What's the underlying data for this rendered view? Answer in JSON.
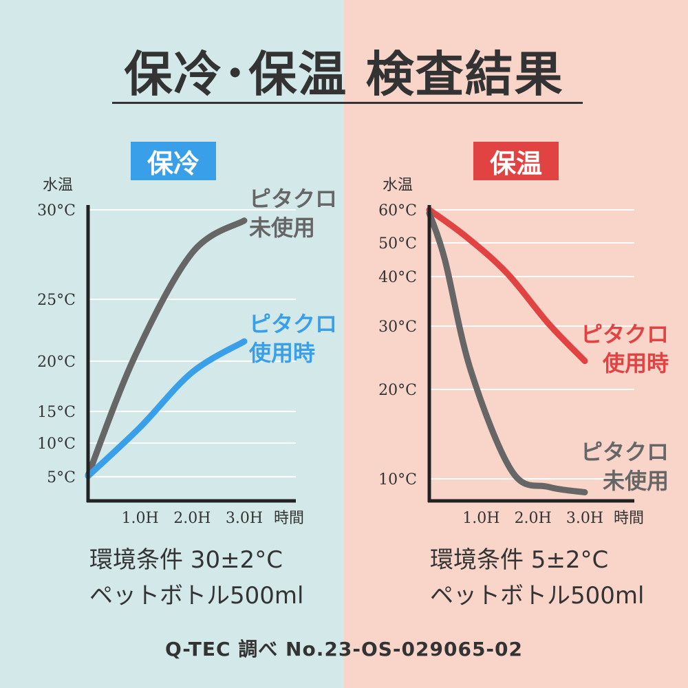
{
  "title": "保冷･保温 検査結果",
  "source": "Q-TEC 調べ No.23-OS-029065-02",
  "colors": {
    "cold_blue": "#3a9fe9",
    "hot_red": "#e14242",
    "gray_line": "#666666",
    "axis": "#222222"
  },
  "left": {
    "badge": "保冷",
    "condition_line1": "環境条件 30±2°C",
    "condition_line2": "ペットボトル500ml"
  },
  "right": {
    "badge": "保温",
    "condition_line1": "環境条件 5±2°C",
    "condition_line2": "ペットボトル500ml"
  },
  "chart_data": [
    {
      "type": "line",
      "title": "保冷",
      "ylabel": "水温",
      "xlabel": "時間",
      "x_ticks": [
        "1.0H",
        "2.0H",
        "3.0H"
      ],
      "y_ticks": [
        {
          "label": "30°C",
          "value": 30
        },
        {
          "label": "25°C",
          "value": 25
        },
        {
          "label": "20°C",
          "value": 20
        },
        {
          "label": "15°C",
          "value": 15
        },
        {
          "label": "10°C",
          "value": 10
        },
        {
          "label": "5°C",
          "value": 5
        }
      ],
      "series": [
        {
          "name": "ピタクロ未使用",
          "label_lines": [
            "ピタクロ",
            "未使用"
          ],
          "color": "#666666",
          "points": [
            [
              0,
              5.2
            ],
            [
              0.9,
              20.4
            ],
            [
              2.0,
              27.6
            ],
            [
              3.0,
              29.4
            ]
          ]
        },
        {
          "name": "ピタクロ使用時",
          "label_lines": [
            "ピタクロ",
            "使用時"
          ],
          "color": "#3a9fe9",
          "points": [
            [
              0,
              5.1
            ],
            [
              1.0,
              12.5
            ],
            [
              2.0,
              18.9
            ],
            [
              3.0,
              21.6
            ]
          ]
        }
      ]
    },
    {
      "type": "line",
      "title": "保温",
      "ylabel": "水温",
      "xlabel": "時間",
      "x_ticks": [
        "1.0H",
        "2.0H",
        "3.0H"
      ],
      "y_ticks": [
        {
          "label": "60°C",
          "value": 60
        },
        {
          "label": "50°C",
          "value": 50
        },
        {
          "label": "40°C",
          "value": 40
        },
        {
          "label": "30°C",
          "value": 30
        },
        {
          "label": "20°C",
          "value": 20
        },
        {
          "label": "10°C",
          "value": 10
        }
      ],
      "series": [
        {
          "name": "ピタクロ使用時",
          "label_lines": [
            "ピタクロ",
            "使用時"
          ],
          "color": "#e14242",
          "points": [
            [
              0,
              60
            ],
            [
              0.7,
              52
            ],
            [
              1.5,
              41
            ],
            [
              2.3,
              30.5
            ],
            [
              3.0,
              24.5
            ]
          ]
        },
        {
          "name": "ピタクロ未使用",
          "label_lines": [
            "ピタクロ",
            "未使用"
          ],
          "color": "#666666",
          "points": [
            [
              0,
              59
            ],
            [
              0.3,
              45
            ],
            [
              0.8,
              23
            ],
            [
              1.6,
              10.8
            ],
            [
              2.3,
              9.1
            ],
            [
              3.0,
              8.5
            ]
          ]
        }
      ]
    }
  ]
}
